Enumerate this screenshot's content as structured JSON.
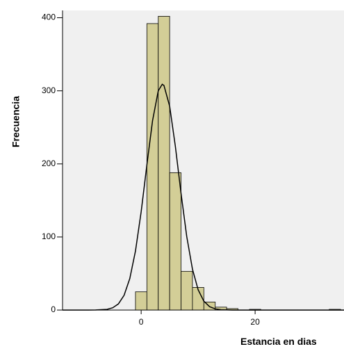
{
  "chart_data": {
    "type": "histogram",
    "xlabel": "Estancia en dias",
    "ylabel": "Frecuencia",
    "bins": [
      -1,
      1,
      3,
      5,
      7,
      9,
      11,
      13,
      15,
      17,
      19,
      21,
      23,
      25,
      27,
      29,
      31,
      33,
      35
    ],
    "counts": [
      25,
      392,
      402,
      188,
      53,
      31,
      11,
      4,
      2,
      0,
      1,
      0,
      0,
      0,
      0,
      0,
      0,
      1
    ],
    "color": "#d3ce97",
    "curve": {
      "x": [
        -13.8,
        -10,
        -8,
        -6,
        -5,
        -4,
        -3,
        -2,
        -1,
        0,
        1,
        2,
        3,
        3.7,
        4,
        5,
        6,
        7,
        8,
        9,
        10,
        11,
        12,
        13,
        14,
        16,
        35.6
      ],
      "y": [
        0,
        0,
        0.1,
        1.0,
        3.1,
        8.4,
        20.2,
        43,
        80.8,
        134.6,
        198.5,
        259.2,
        300,
        309,
        307.3,
        278.9,
        224.1,
        159.5,
        100.6,
        56.1,
        27.7,
        12.2,
        4.7,
        1.6,
        0.5,
        0,
        0
      ],
      "color": "#000000"
    },
    "xlim": [
      -13.8,
      35.6
    ],
    "ylim": [
      0,
      410
    ],
    "xticks": [
      0,
      20
    ],
    "yticks": [
      0,
      100,
      200,
      300,
      400
    ],
    "plot_background": "#f0f0f0"
  }
}
